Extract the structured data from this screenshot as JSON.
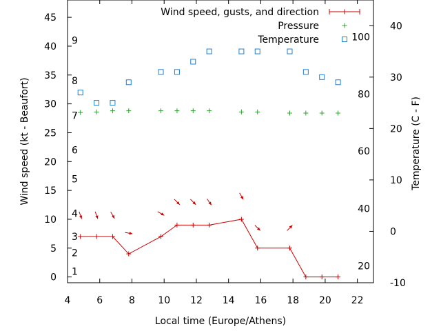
{
  "chart_data": {
    "type": "line",
    "xlabel": "Local time (Europe/Athens)",
    "ylabel": "Wind speed (kt - Beaufort)",
    "y2label": "Temperature (C - F)",
    "xlim": [
      4,
      23
    ],
    "ylim": [
      -1,
      48
    ],
    "y2lim": [
      -10,
      45
    ],
    "xticks": [
      4,
      6,
      8,
      10,
      12,
      14,
      16,
      18,
      20,
      22
    ],
    "yticks": [
      0,
      5,
      10,
      15,
      20,
      25,
      30,
      35,
      40,
      45
    ],
    "y2ticks": [
      -10,
      0,
      10,
      20,
      30,
      40
    ],
    "grid": false,
    "legend_position": "top-right",
    "beaufort_scale": [
      {
        "label": "1",
        "y": 1
      },
      {
        "label": "2",
        "y": 4.2
      },
      {
        "label": "3",
        "y": 7
      },
      {
        "label": "4",
        "y": 11
      },
      {
        "label": "5",
        "y": 17
      },
      {
        "label": "6",
        "y": 22
      },
      {
        "label": "7",
        "y": 28
      },
      {
        "label": "8",
        "y": 34
      },
      {
        "label": "9",
        "y": 41
      }
    ],
    "fahrenheit_scale": [
      {
        "label": "20",
        "y2": -6.7
      },
      {
        "label": "40",
        "y2": 4.4
      },
      {
        "label": "60",
        "y2": 15.6
      },
      {
        "label": "80",
        "y2": 26.7
      },
      {
        "label": "100",
        "y2": 37.8
      }
    ],
    "series": [
      {
        "name": "Wind speed, gusts, and direction",
        "color": "#cc0000",
        "axis": "y",
        "style": "line-plus",
        "x": [
          4.8,
          5.8,
          6.8,
          7.8,
          9.8,
          10.8,
          11.8,
          12.8,
          14.8,
          15.8,
          17.8,
          18.8,
          19.8,
          20.8
        ],
        "y": [
          7,
          7,
          7,
          4,
          7,
          9,
          9,
          9,
          10,
          5,
          5,
          0,
          0,
          0
        ]
      },
      {
        "name": "Pressure",
        "color": "#2ea02e",
        "axis": "y",
        "style": "plus",
        "x": [
          4.8,
          5.8,
          6.8,
          7.8,
          9.8,
          10.8,
          11.8,
          12.8,
          14.8,
          15.8,
          17.8,
          18.8,
          19.8,
          20.8
        ],
        "y": [
          28.5,
          28.6,
          28.8,
          28.8,
          28.8,
          28.8,
          28.8,
          28.8,
          28.6,
          28.6,
          28.4,
          28.4,
          28.4,
          28.4
        ]
      },
      {
        "name": "Temperature",
        "color": "#1e7fd0",
        "axis": "y2",
        "style": "open-square",
        "x": [
          4.8,
          5.8,
          6.8,
          7.8,
          9.8,
          10.8,
          11.8,
          12.8,
          14.8,
          15.8,
          17.8,
          18.8,
          19.8,
          20.8
        ],
        "y": [
          27,
          25,
          25,
          29,
          31,
          31,
          33,
          35,
          35,
          35,
          35,
          31,
          30,
          29
        ]
      }
    ],
    "wind_arrows": {
      "color": "#cc0000",
      "x": [
        4.8,
        5.8,
        6.8,
        7.8,
        9.8,
        10.8,
        11.8,
        12.8,
        14.8,
        15.8,
        17.8
      ],
      "y": [
        10.7,
        10.7,
        10.7,
        7.6,
        11,
        13,
        13,
        13,
        14,
        8.5,
        8.5
      ],
      "direction_deg": [
        340,
        340,
        330,
        280,
        300,
        315,
        315,
        325,
        330,
        315,
        225
      ]
    }
  }
}
